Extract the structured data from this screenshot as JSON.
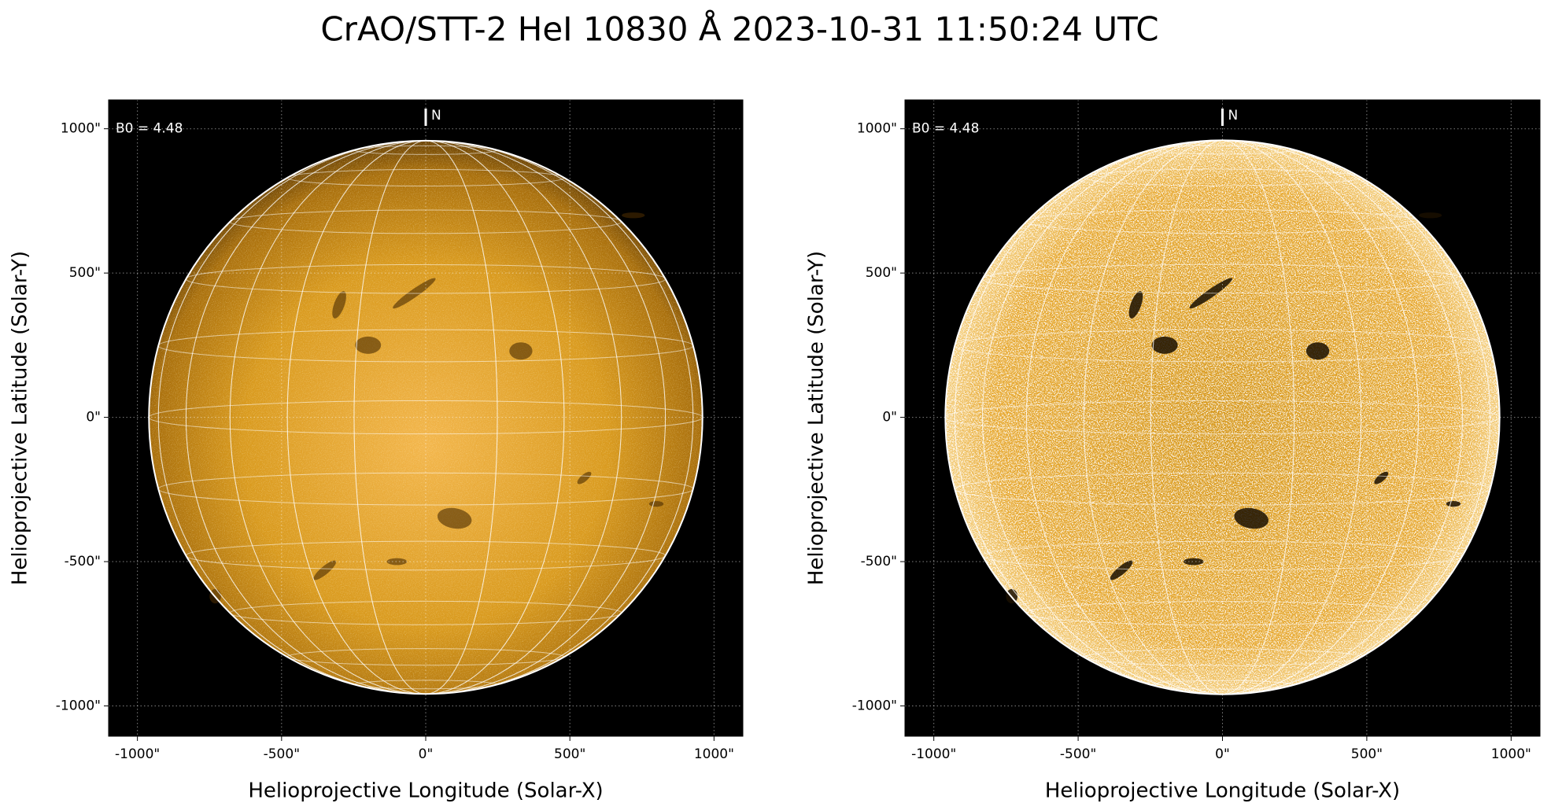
{
  "title": "CrAO/STT-2 HeI 10830 Å 2023-10-31 11:50:24 UTC",
  "chart_data": [
    {
      "type": "image",
      "xlabel": "Helioprojective Longitude (Solar-X)",
      "ylabel": "Helioprojective Latitude (Solar-Y)",
      "xlim": [
        -1100,
        1100
      ],
      "ylim": [
        -1105,
        1100
      ],
      "xticks": [
        {
          "value": -1000,
          "label": "-1000\""
        },
        {
          "value": -500,
          "label": "-500\""
        },
        {
          "value": 0,
          "label": "0\""
        },
        {
          "value": 500,
          "label": "500\""
        },
        {
          "value": 1000,
          "label": "1000\""
        }
      ],
      "yticks": [
        {
          "value": -1000,
          "label": "-1000\""
        },
        {
          "value": -500,
          "label": "-500\""
        },
        {
          "value": 0,
          "label": "0\""
        },
        {
          "value": 500,
          "label": "500\""
        },
        {
          "value": 1000,
          "label": "1000\""
        }
      ],
      "annotations": [
        "B0 = 4.48",
        "N"
      ],
      "grid": true,
      "contrast": "normal"
    },
    {
      "type": "image",
      "xlabel": "Helioprojective Longitude (Solar-X)",
      "ylabel": "Helioprojective Latitude (Solar-Y)",
      "xlim": [
        -1100,
        1100
      ],
      "ylim": [
        -1105,
        1100
      ],
      "xticks": [
        {
          "value": -1000,
          "label": "-1000\""
        },
        {
          "value": -500,
          "label": "-500\""
        },
        {
          "value": 0,
          "label": "0\""
        },
        {
          "value": 500,
          "label": "500\""
        },
        {
          "value": 1000,
          "label": "1000\""
        }
      ],
      "yticks": [
        {
          "value": -1000,
          "label": "-1000\""
        },
        {
          "value": -500,
          "label": "-500\""
        },
        {
          "value": 0,
          "label": "0\""
        },
        {
          "value": 500,
          "label": "500\""
        },
        {
          "value": 1000,
          "label": "1000\""
        }
      ],
      "annotations": [
        "B0 = 4.48",
        "N"
      ],
      "grid": true,
      "contrast": "high"
    }
  ]
}
